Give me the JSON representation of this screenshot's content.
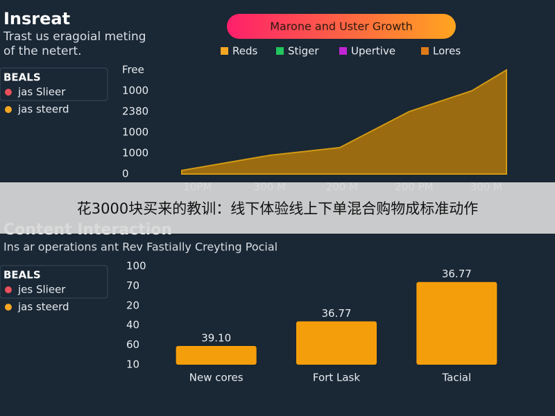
{
  "header": {
    "title": "Insreat",
    "subtitle_lines": [
      "Trast us eragoial meting",
      "of the netert."
    ]
  },
  "sidebar_top": {
    "heading": "BEALS",
    "items": [
      "jas Slieer",
      "jas steerd"
    ]
  },
  "sidebar_bottom": {
    "heading": "BEALS",
    "items": [
      "jes Slieer",
      "jas steerd"
    ]
  },
  "banner": {
    "text": "花3000块买来的教训：线下体验线上下单混合购物成标准动作"
  },
  "section2": {
    "title": "Content Interaction",
    "subtitle": "Ins ar operations ant Rev Fastially Creyting Pocial"
  },
  "chart_data": [
    {
      "type": "area",
      "title": "Marone and Uster Growth",
      "legend": [
        {
          "name": "Reds",
          "color": "#f5a623"
        },
        {
          "name": "Stiger",
          "color": "#22c55e"
        },
        {
          "name": "Upertive",
          "color": "#c026d3"
        },
        {
          "name": "Lores",
          "color": "#e07b1a"
        }
      ],
      "color": "#a8730c",
      "x": [
        -0.22,
        1.0,
        1.97,
        2.93,
        3.8,
        4.28
      ],
      "values": [
        0.17,
        0.9,
        1.27,
        3.0,
        4.0,
        5.0
      ],
      "xlim": [
        -0.22,
        4.28
      ],
      "xticks": [
        {
          "value": 0,
          "label": "10PM"
        },
        {
          "value": 1,
          "label": "300 M"
        },
        {
          "value": 2,
          "label": "200 M"
        },
        {
          "value": 3,
          "label": "200 PM"
        },
        {
          "value": 4,
          "label": "300 M"
        }
      ],
      "ylim": [
        0,
        5
      ],
      "yticks": [
        0,
        {
          "value": 1,
          "label": "1000"
        },
        {
          "value": 2,
          "label": "1000"
        },
        {
          "value": 3,
          "label": "2380"
        },
        {
          "value": 4,
          "label": "1000"
        },
        {
          "value": 5,
          "label": "Free"
        }
      ]
    },
    {
      "type": "bar",
      "color": "#f59e0b",
      "categories": [
        "New cores",
        "Fort Lask",
        "Tacial"
      ],
      "values": [
        0.95,
        2.2,
        4.2
      ],
      "annotations": [
        "39.10",
        "36.77",
        "36.77"
      ],
      "ylim": [
        0,
        5
      ],
      "yticks": [
        {
          "value": 0,
          "label": "10"
        },
        {
          "value": 1,
          "label": "60"
        },
        {
          "value": 2,
          "label": "40"
        },
        {
          "value": 3,
          "label": "20"
        },
        {
          "value": 4,
          "label": "70"
        },
        {
          "value": 5,
          "label": "100"
        }
      ]
    }
  ]
}
